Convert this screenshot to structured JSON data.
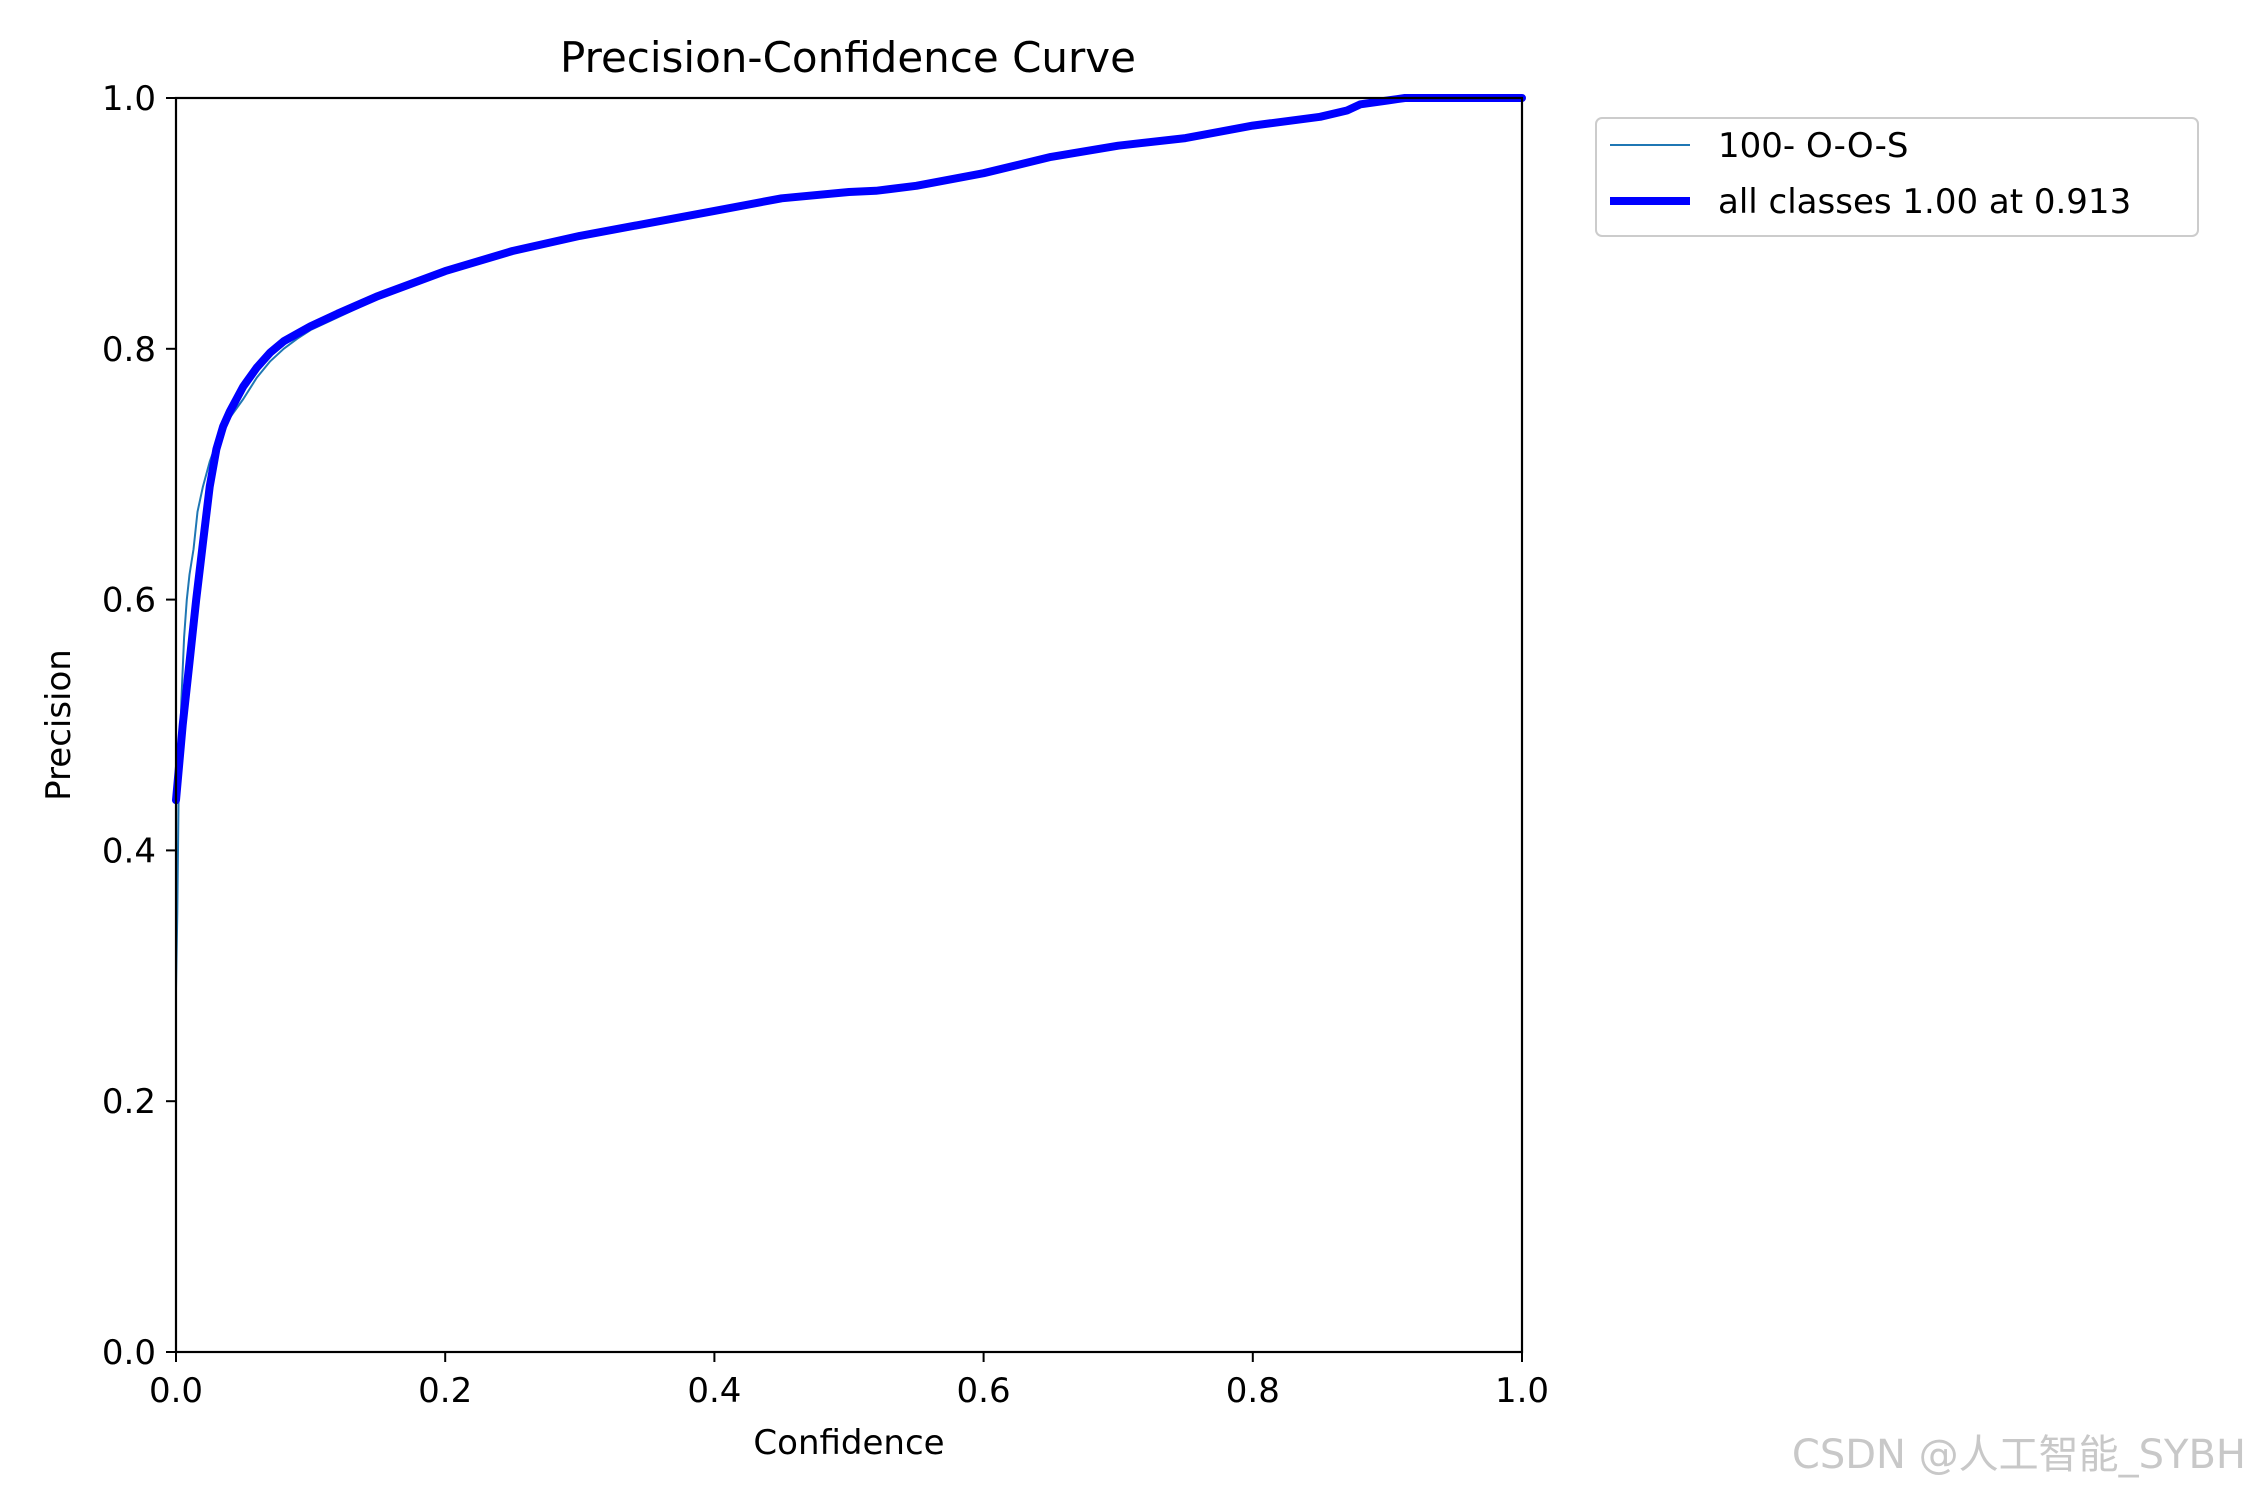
{
  "chart_data": {
    "type": "line",
    "title": "Precision-Confidence Curve",
    "xlabel": "Confidence",
    "ylabel": "Precision",
    "xlim": [
      0,
      1
    ],
    "ylim": [
      0,
      1
    ],
    "xticks": [
      "0.0",
      "0.2",
      "0.4",
      "0.6",
      "0.8",
      "1.0"
    ],
    "yticks": [
      "0.0",
      "0.2",
      "0.4",
      "0.6",
      "0.8",
      "1.0"
    ],
    "grid": false,
    "legend_position": "outside top-right",
    "series": [
      {
        "name": "100- O-O-S",
        "color": "#1f77b4",
        "x": [
          0.0,
          0.001,
          0.002,
          0.004,
          0.006,
          0.008,
          0.01,
          0.013,
          0.016,
          0.02,
          0.025,
          0.03,
          0.035,
          0.04,
          0.05,
          0.06,
          0.07,
          0.08,
          0.09,
          0.1,
          0.12,
          0.15,
          0.2,
          0.25,
          0.3,
          0.35,
          0.4,
          0.45,
          0.5,
          0.52,
          0.55,
          0.6,
          0.65,
          0.7,
          0.75,
          0.8,
          0.85,
          0.87,
          0.88,
          0.9,
          0.92,
          1.0
        ],
        "y": [
          0.29,
          0.35,
          0.45,
          0.52,
          0.57,
          0.6,
          0.62,
          0.64,
          0.67,
          0.69,
          0.71,
          0.725,
          0.735,
          0.745,
          0.76,
          0.777,
          0.79,
          0.8,
          0.808,
          0.815,
          0.825,
          0.84,
          0.862,
          0.88,
          0.89,
          0.9,
          0.91,
          0.92,
          0.925,
          0.925,
          0.93,
          0.94,
          0.953,
          0.962,
          0.968,
          0.978,
          0.985,
          0.99,
          0.995,
          0.998,
          1.0,
          1.0
        ]
      },
      {
        "name": "all classes 1.00 at 0.913",
        "color": "#0000ff",
        "x": [
          0.0,
          0.005,
          0.01,
          0.015,
          0.02,
          0.025,
          0.03,
          0.035,
          0.04,
          0.05,
          0.06,
          0.07,
          0.08,
          0.09,
          0.1,
          0.12,
          0.15,
          0.2,
          0.25,
          0.3,
          0.35,
          0.4,
          0.45,
          0.5,
          0.52,
          0.55,
          0.6,
          0.65,
          0.7,
          0.75,
          0.8,
          0.85,
          0.87,
          0.88,
          0.9,
          0.913,
          1.0
        ],
        "y": [
          0.44,
          0.5,
          0.55,
          0.6,
          0.645,
          0.69,
          0.72,
          0.738,
          0.75,
          0.77,
          0.785,
          0.797,
          0.806,
          0.812,
          0.818,
          0.828,
          0.842,
          0.862,
          0.878,
          0.89,
          0.9,
          0.91,
          0.92,
          0.925,
          0.926,
          0.93,
          0.94,
          0.953,
          0.962,
          0.968,
          0.978,
          0.985,
          0.99,
          0.995,
          0.998,
          1.0,
          1.0
        ]
      }
    ]
  },
  "watermark": "CSDN @人工智能_SYBH"
}
